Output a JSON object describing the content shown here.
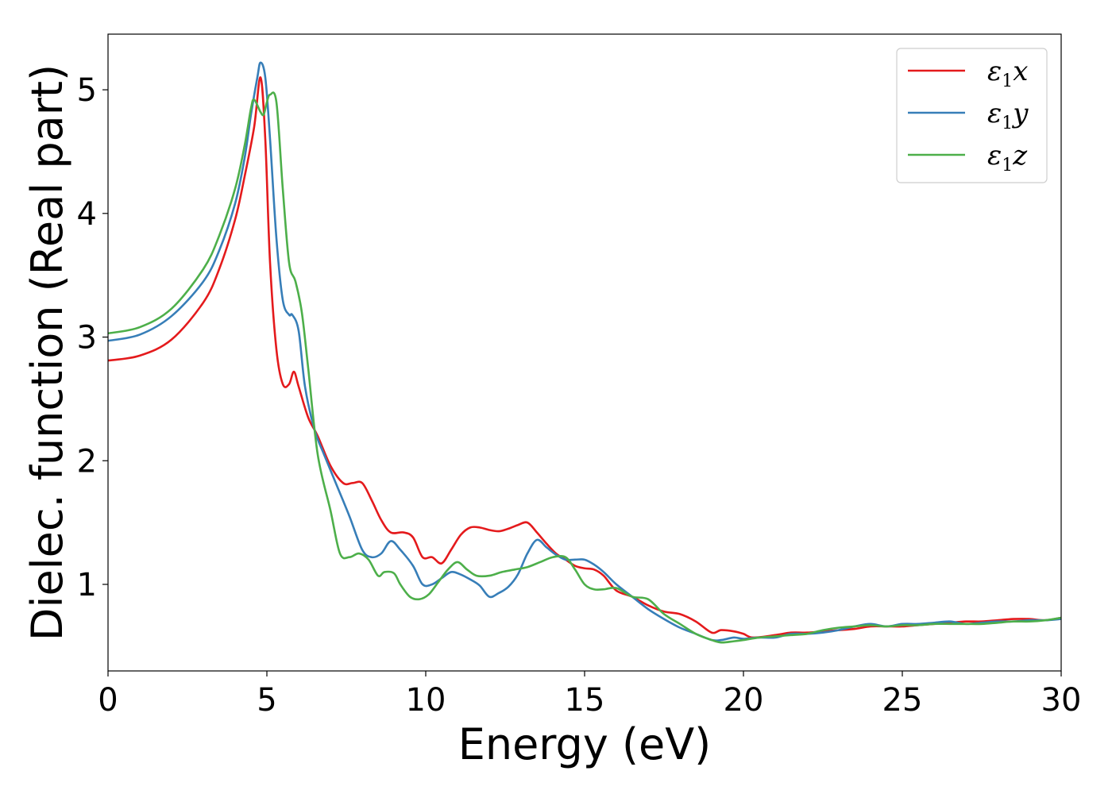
{
  "chart_data": {
    "type": "line",
    "title": "",
    "xlabel": "Energy (eV)",
    "ylabel": "Dielec. function (Real part)",
    "xlim": [
      0,
      30
    ],
    "ylim": [
      0.3,
      5.45
    ],
    "xticks": [
      0,
      5,
      10,
      15,
      20,
      25,
      30
    ],
    "xtick_labels": [
      "0",
      "5",
      "10",
      "15",
      "20",
      "25",
      "30"
    ],
    "yticks": [
      1,
      2,
      3,
      4,
      5
    ],
    "ytick_labels": [
      "1",
      "2",
      "3",
      "4",
      "5"
    ],
    "grid": false,
    "legend_position": "top-right",
    "series": [
      {
        "name": "ε1x",
        "legend_main": "ε",
        "legend_sub": "1",
        "legend_var": "x",
        "color": "#e41a1c",
        "x": [
          0,
          1,
          2,
          3,
          3.5,
          4,
          4.3,
          4.6,
          4.8,
          4.95,
          5.1,
          5.3,
          5.5,
          5.7,
          5.85,
          6.0,
          6.3,
          6.6,
          7.0,
          7.4,
          7.7,
          8.0,
          8.3,
          8.6,
          8.9,
          9.3,
          9.6,
          9.9,
          10.2,
          10.5,
          10.8,
          11.1,
          11.4,
          11.7,
          12.0,
          12.3,
          12.6,
          12.9,
          13.2,
          13.5,
          13.8,
          14.1,
          14.4,
          14.7,
          15.0,
          15.3,
          15.6,
          16.0,
          16.5,
          17.0,
          17.5,
          18.0,
          18.5,
          19.0,
          19.3,
          19.7,
          20.0,
          20.3,
          21.0,
          21.5,
          22.0,
          22.5,
          23.0,
          23.5,
          24.0,
          24.5,
          25.0,
          25.5,
          26.0,
          26.5,
          27.0,
          27.5,
          28.0,
          28.5,
          29.0,
          29.5,
          30.0
        ],
        "y": [
          2.81,
          2.85,
          2.98,
          3.28,
          3.55,
          3.95,
          4.3,
          4.7,
          5.1,
          4.6,
          3.6,
          2.9,
          2.62,
          2.62,
          2.72,
          2.6,
          2.35,
          2.2,
          1.96,
          1.82,
          1.82,
          1.82,
          1.68,
          1.52,
          1.42,
          1.42,
          1.38,
          1.22,
          1.22,
          1.17,
          1.28,
          1.4,
          1.46,
          1.46,
          1.44,
          1.43,
          1.45,
          1.48,
          1.5,
          1.42,
          1.33,
          1.25,
          1.2,
          1.15,
          1.13,
          1.12,
          1.07,
          0.95,
          0.9,
          0.83,
          0.78,
          0.76,
          0.7,
          0.61,
          0.63,
          0.62,
          0.6,
          0.57,
          0.59,
          0.61,
          0.61,
          0.62,
          0.63,
          0.64,
          0.66,
          0.66,
          0.66,
          0.67,
          0.68,
          0.69,
          0.7,
          0.7,
          0.71,
          0.72,
          0.72,
          0.71,
          0.73
        ]
      },
      {
        "name": "ε1y",
        "legend_main": "ε",
        "legend_sub": "1",
        "legend_var": "y",
        "color": "#377eb8",
        "x": [
          0,
          1,
          2,
          3,
          3.5,
          4,
          4.3,
          4.5,
          4.7,
          4.8,
          4.95,
          5.1,
          5.3,
          5.5,
          5.7,
          5.8,
          6.0,
          6.2,
          6.5,
          6.8,
          7.2,
          7.6,
          8.0,
          8.3,
          8.6,
          8.9,
          9.2,
          9.6,
          9.9,
          10.2,
          10.5,
          10.8,
          11.1,
          11.4,
          11.7,
          12.0,
          12.3,
          12.6,
          12.9,
          13.2,
          13.5,
          13.8,
          14.1,
          14.4,
          14.7,
          15.0,
          15.3,
          15.6,
          16.0,
          16.5,
          17.0,
          17.5,
          18.0,
          18.5,
          19.0,
          19.3,
          19.7,
          20.0,
          20.5,
          21.0,
          21.5,
          22.0,
          22.5,
          23.0,
          23.5,
          24.0,
          24.5,
          25.0,
          25.5,
          26.0,
          26.5,
          27.0,
          27.5,
          28.0,
          28.5,
          29.0,
          29.5,
          30.0
        ],
        "y": [
          2.97,
          3.02,
          3.17,
          3.45,
          3.7,
          4.08,
          4.45,
          4.8,
          5.1,
          5.22,
          5.1,
          4.6,
          3.8,
          3.3,
          3.18,
          3.18,
          3.05,
          2.6,
          2.25,
          2.05,
          1.8,
          1.55,
          1.28,
          1.22,
          1.25,
          1.35,
          1.28,
          1.15,
          1.0,
          1.0,
          1.05,
          1.1,
          1.08,
          1.04,
          0.99,
          0.9,
          0.93,
          0.98,
          1.08,
          1.25,
          1.36,
          1.3,
          1.24,
          1.2,
          1.2,
          1.2,
          1.16,
          1.1,
          1.0,
          0.9,
          0.8,
          0.72,
          0.65,
          0.6,
          0.55,
          0.55,
          0.57,
          0.56,
          0.57,
          0.57,
          0.6,
          0.6,
          0.61,
          0.63,
          0.66,
          0.68,
          0.66,
          0.68,
          0.68,
          0.69,
          0.7,
          0.68,
          0.69,
          0.7,
          0.7,
          0.71,
          0.71,
          0.72
        ]
      },
      {
        "name": "ε1z",
        "legend_main": "ε",
        "legend_sub": "1",
        "legend_var": "z",
        "color": "#4daf4a",
        "x": [
          0,
          1,
          2,
          3,
          3.5,
          4,
          4.3,
          4.5,
          4.6,
          4.8,
          4.9,
          5.0,
          5.1,
          5.3,
          5.5,
          5.7,
          5.9,
          6.1,
          6.3,
          6.6,
          7.0,
          7.3,
          7.6,
          7.9,
          8.2,
          8.5,
          8.7,
          9.0,
          9.2,
          9.5,
          9.8,
          10.1,
          10.4,
          10.7,
          11.0,
          11.3,
          11.6,
          12.0,
          12.4,
          12.8,
          13.2,
          13.6,
          14.0,
          14.4,
          14.7,
          15.0,
          15.3,
          15.6,
          16.0,
          16.5,
          17.0,
          17.5,
          18.0,
          18.5,
          19.0,
          19.3,
          19.7,
          20.0,
          20.5,
          21.0,
          21.5,
          22.0,
          22.5,
          23.0,
          23.5,
          24.0,
          24.5,
          25.0,
          25.5,
          26.0,
          26.5,
          27.0,
          27.5,
          28.0,
          28.5,
          29.0,
          29.5,
          30.0
        ],
        "y": [
          3.03,
          3.08,
          3.23,
          3.55,
          3.82,
          4.2,
          4.55,
          4.85,
          4.92,
          4.82,
          4.8,
          4.9,
          4.96,
          4.9,
          4.2,
          3.6,
          3.45,
          3.2,
          2.75,
          2.05,
          1.6,
          1.25,
          1.22,
          1.25,
          1.2,
          1.07,
          1.1,
          1.09,
          1.0,
          0.9,
          0.88,
          0.92,
          1.02,
          1.12,
          1.18,
          1.12,
          1.07,
          1.07,
          1.1,
          1.12,
          1.14,
          1.18,
          1.22,
          1.22,
          1.12,
          1.0,
          0.96,
          0.96,
          0.97,
          0.9,
          0.88,
          0.76,
          0.68,
          0.6,
          0.55,
          0.53,
          0.54,
          0.55,
          0.57,
          0.58,
          0.59,
          0.6,
          0.63,
          0.65,
          0.66,
          0.67,
          0.66,
          0.67,
          0.67,
          0.68,
          0.68,
          0.68,
          0.68,
          0.69,
          0.7,
          0.7,
          0.71,
          0.73
        ]
      }
    ]
  }
}
